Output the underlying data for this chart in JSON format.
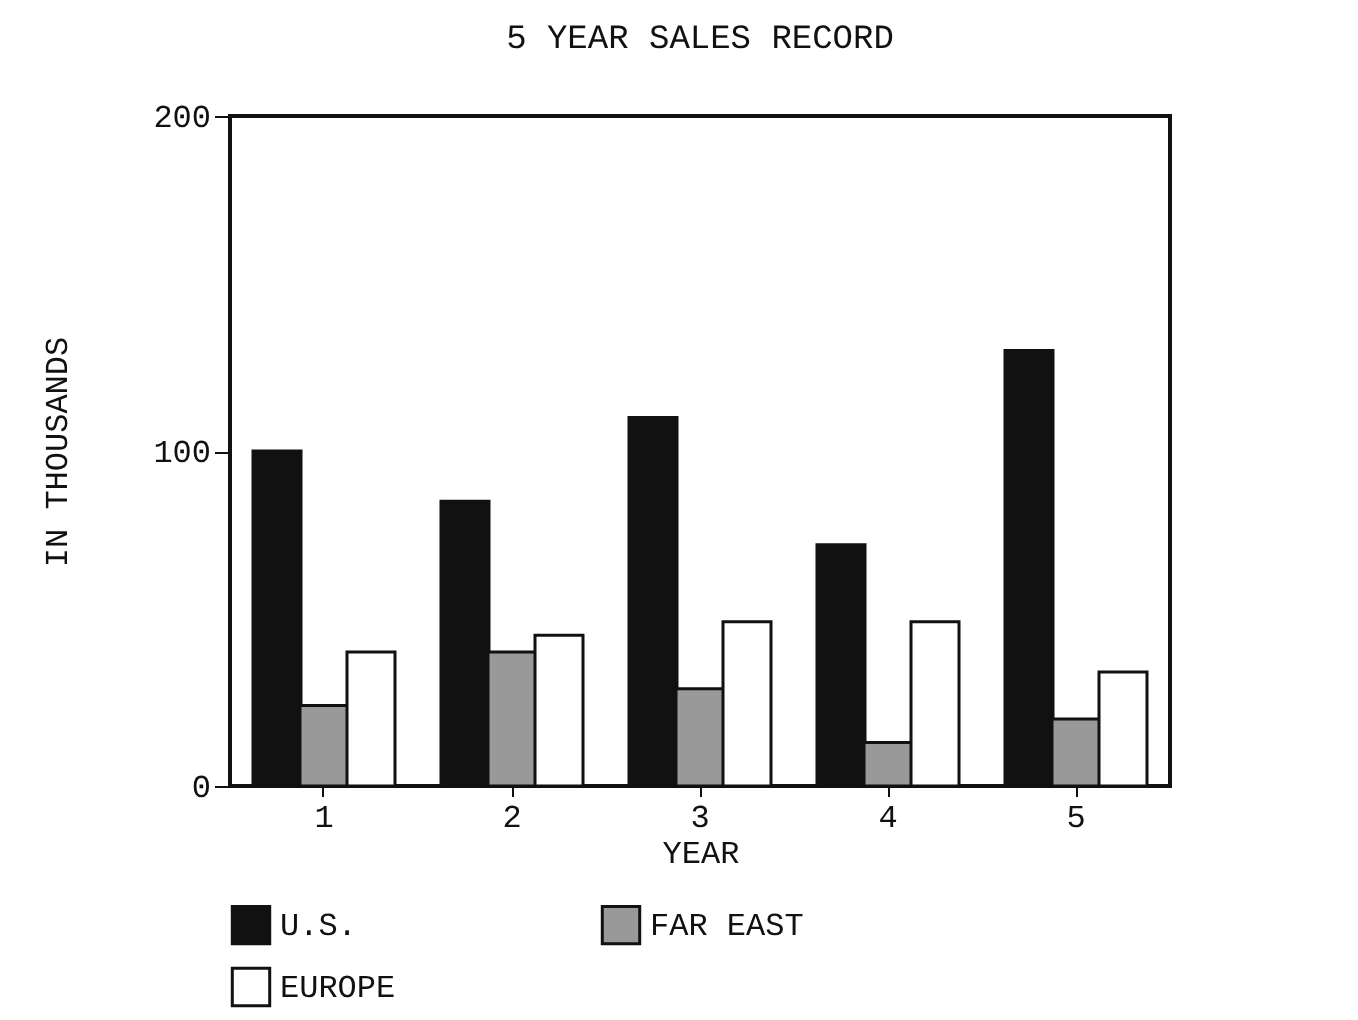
{
  "chart_data": {
    "type": "bar",
    "title": "5 YEAR SALES RECORD",
    "xlabel": "YEAR",
    "ylabel": "IN THOUSANDS",
    "categories": [
      "1",
      "2",
      "3",
      "4",
      "5"
    ],
    "series": [
      {
        "name": "U.S.",
        "color": "#111111",
        "values": [
          100,
          85,
          110,
          72,
          130
        ]
      },
      {
        "name": "FAR EAST",
        "color": "#999999",
        "values": [
          24,
          40,
          29,
          13,
          20
        ]
      },
      {
        "name": "EUROPE",
        "color": "#ffffff",
        "values": [
          40,
          45,
          49,
          49,
          34
        ]
      }
    ],
    "ylim": [
      0,
      200
    ],
    "yticks": [
      0,
      100,
      200
    ],
    "grid": false,
    "legend": "bottom"
  }
}
